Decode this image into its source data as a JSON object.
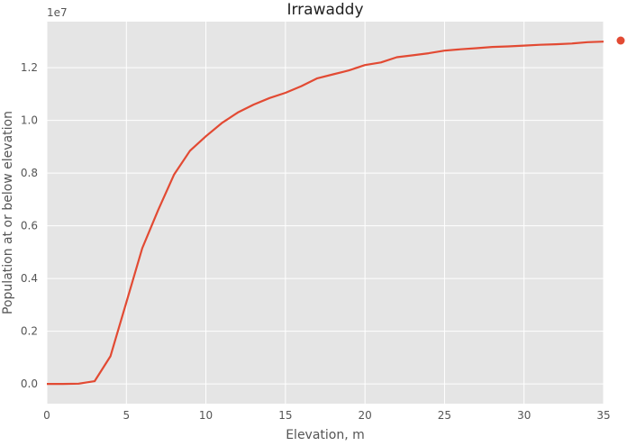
{
  "chart_data": {
    "type": "line",
    "title": "Irrawaddy",
    "xlabel": "Elevation, m",
    "ylabel": "Population at or below elevation",
    "y_offset_label": "1e7",
    "xlim": [
      0,
      35
    ],
    "ylim": [
      -0.075,
      1.375
    ],
    "x_ticks": [
      0,
      5,
      10,
      15,
      20,
      25,
      30,
      35
    ],
    "y_ticks": [
      0.0,
      0.2,
      0.4,
      0.6,
      0.8,
      1.0,
      1.2
    ],
    "y_tick_labels": [
      "0.0",
      "0.2",
      "0.4",
      "0.6",
      "0.8",
      "1.0",
      "1.2"
    ],
    "grid": true,
    "legend": "right",
    "colors": {
      "series": "#E24A33",
      "background": "#E5E5E5",
      "grid": "#FFFFFF",
      "text": "#555555"
    },
    "series": [
      {
        "x": [
          0,
          1,
          2,
          3,
          4,
          5,
          6,
          7,
          8,
          9,
          10,
          11,
          12,
          13,
          14,
          15,
          16,
          17,
          18,
          19,
          20,
          21,
          22,
          23,
          24,
          25,
          26,
          27,
          28,
          29,
          30,
          31,
          32,
          33,
          34,
          35
        ],
        "y": [
          0.0,
          0.0,
          0.001,
          0.01,
          0.105,
          0.31,
          0.515,
          0.66,
          0.795,
          0.885,
          0.94,
          0.99,
          1.03,
          1.06,
          1.085,
          1.105,
          1.13,
          1.16,
          1.175,
          1.19,
          1.21,
          1.22,
          1.24,
          1.247,
          1.255,
          1.265,
          1.27,
          1.274,
          1.279,
          1.281,
          1.284,
          1.287,
          1.289,
          1.292,
          1.297,
          1.299
        ]
      }
    ]
  }
}
